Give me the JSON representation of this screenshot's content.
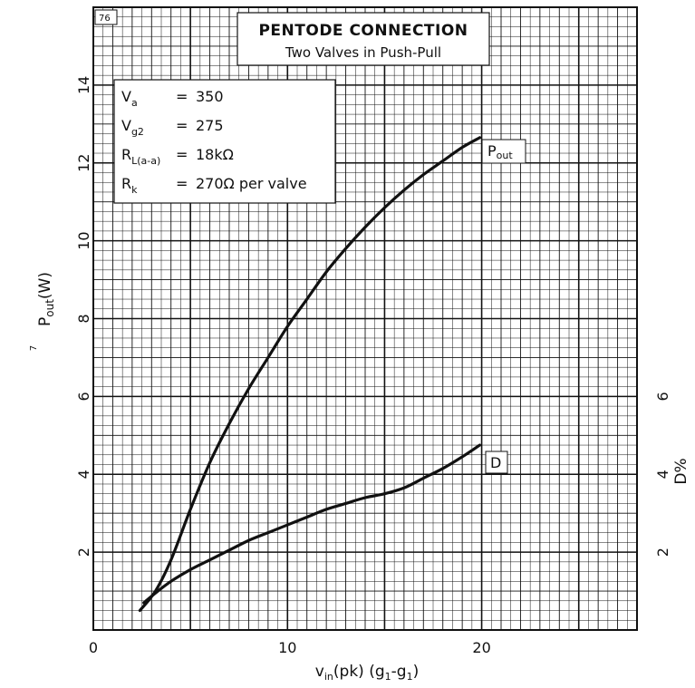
{
  "chart_data": {
    "type": "line",
    "title": "PENTODE CONNECTION",
    "subtitle": "Two Valves in Push-Pull",
    "page_number": "76",
    "side_mark": "7",
    "xlabel": "v_in(pk) (g1-g1)",
    "ylabel_left": "P_out (W)",
    "ylabel_right": "D%",
    "xlim": [
      0,
      28
    ],
    "ylim_left": [
      0,
      16
    ],
    "ylim_right": [
      0,
      16
    ],
    "x_ticks": [
      0,
      10,
      20
    ],
    "y_ticks_left": [
      2,
      4,
      6,
      8,
      10,
      12,
      14
    ],
    "y_ticks_right": [
      2,
      4,
      6
    ],
    "grid": true,
    "conditions": {
      "va": {
        "sym": "V",
        "sub": "a",
        "eq": "=",
        "val": "350"
      },
      "vg2": {
        "sym": "V",
        "sub": "g2",
        "eq": "=",
        "val": "275"
      },
      "rl": {
        "sym": "R",
        "sub": "L(a-a)",
        "eq": "=",
        "val": "18kΩ"
      },
      "rk": {
        "sym": "R",
        "sub": "k",
        "eq": "=",
        "val": "270Ω per valve"
      }
    },
    "series": [
      {
        "name": "Pout",
        "label_main": "P",
        "label_sub": "out",
        "axis": "left",
        "x": [
          2.4,
          3.2,
          4.0,
          5.0,
          6.0,
          7.0,
          8.0,
          9.0,
          10.0,
          11.0,
          12.0,
          13.0,
          14.0,
          15.0,
          16.0,
          17.0,
          18.0,
          19.0,
          19.9
        ],
        "y": [
          0.5,
          1.0,
          1.8,
          3.1,
          4.3,
          5.3,
          6.2,
          7.0,
          7.8,
          8.5,
          9.2,
          9.8,
          10.35,
          10.85,
          11.3,
          11.7,
          12.05,
          12.4,
          12.65
        ]
      },
      {
        "name": "D",
        "label_main": "D",
        "axis": "right",
        "x": [
          2.6,
          3.2,
          4.0,
          5.0,
          6.0,
          7.0,
          8.0,
          9.0,
          10.0,
          11.0,
          12.0,
          13.0,
          14.0,
          15.0,
          16.0,
          17.0,
          18.0,
          19.0,
          19.9
        ],
        "y": [
          0.7,
          0.95,
          1.25,
          1.55,
          1.8,
          2.05,
          2.3,
          2.5,
          2.7,
          2.9,
          3.1,
          3.25,
          3.4,
          3.5,
          3.65,
          3.9,
          4.15,
          4.45,
          4.75
        ]
      }
    ]
  }
}
